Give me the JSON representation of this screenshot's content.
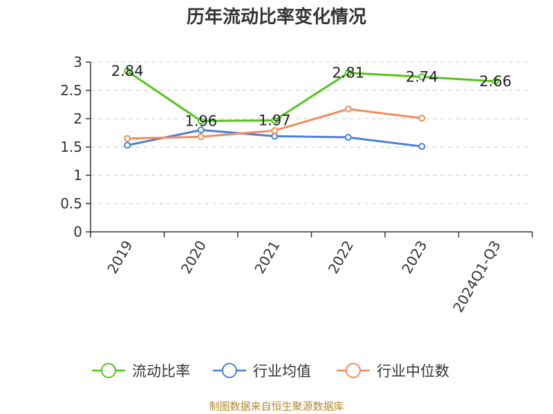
{
  "chart_data": {
    "type": "line",
    "title": "历年流动比率变化情况",
    "categories": [
      "2019",
      "2020",
      "2021",
      "2022",
      "2023",
      "2024Q1-Q3"
    ],
    "ylim": [
      0,
      3
    ],
    "yticks": [
      "0",
      "0.5",
      "1",
      "1.5",
      "2",
      "2.5",
      "3"
    ],
    "grid": "horizontal dashed",
    "legend_position": "bottom",
    "series": [
      {
        "name": "流动比率",
        "color": "#52c41a",
        "values": [
          2.84,
          1.96,
          1.97,
          2.81,
          2.74,
          2.66
        ],
        "labels": [
          "2.84",
          "1.96",
          "1.97",
          "2.81",
          "2.74",
          "2.66"
        ]
      },
      {
        "name": "行业均值",
        "color": "#4a7fd8",
        "values": [
          1.53,
          1.8,
          1.69,
          1.67,
          1.51,
          null
        ]
      },
      {
        "name": "行业中位数",
        "color": "#f5895a",
        "values": [
          1.65,
          1.68,
          1.79,
          2.17,
          2.01,
          null
        ]
      }
    ]
  },
  "source": "制图数据来自恒生聚源数据库"
}
